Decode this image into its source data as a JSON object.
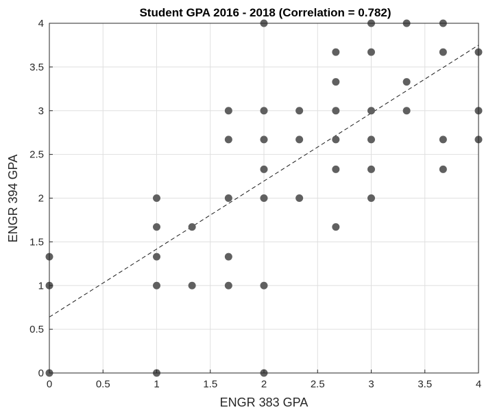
{
  "chart_data": {
    "type": "scatter",
    "title": "Student GPA 2016 - 2018 (Correlation = 0.782)",
    "xlabel": "ENGR 383 GPA",
    "ylabel": "ENGR 394 GPA",
    "xlim": [
      0,
      4
    ],
    "ylim": [
      0,
      4
    ],
    "xticks": [
      0,
      0.5,
      1,
      1.5,
      2,
      2.5,
      3,
      3.5,
      4
    ],
    "xtick_labels": [
      "0",
      "0.5",
      "1",
      "1.5",
      "2",
      "2.5",
      "3",
      "3.5",
      "4"
    ],
    "yticks": [
      0,
      0.5,
      1,
      1.5,
      2,
      2.5,
      3,
      3.5,
      4
    ],
    "ytick_labels": [
      "0",
      "0.5",
      "1",
      "1.5",
      "2",
      "2.5",
      "3",
      "3.5",
      "4"
    ],
    "grid": true,
    "marker_color": "#606060",
    "trendline": {
      "style": "dashed",
      "color": "#1a1a1a",
      "x": [
        0,
        4
      ],
      "y": [
        0.64,
        3.75
      ]
    },
    "points": [
      {
        "x": 0,
        "y": 0
      },
      {
        "x": 0,
        "y": 1
      },
      {
        "x": 0,
        "y": 1.33
      },
      {
        "x": 1,
        "y": 0
      },
      {
        "x": 1,
        "y": 1
      },
      {
        "x": 1,
        "y": 1.33
      },
      {
        "x": 1,
        "y": 1.67
      },
      {
        "x": 1,
        "y": 2
      },
      {
        "x": 1.33,
        "y": 1
      },
      {
        "x": 1.33,
        "y": 1.67
      },
      {
        "x": 1.67,
        "y": 1
      },
      {
        "x": 1.67,
        "y": 1.33
      },
      {
        "x": 1.67,
        "y": 2
      },
      {
        "x": 1.67,
        "y": 2.67
      },
      {
        "x": 1.67,
        "y": 3
      },
      {
        "x": 2,
        "y": 0
      },
      {
        "x": 2,
        "y": 1
      },
      {
        "x": 2,
        "y": 2
      },
      {
        "x": 2,
        "y": 2.33
      },
      {
        "x": 2,
        "y": 2.67
      },
      {
        "x": 2,
        "y": 3
      },
      {
        "x": 2,
        "y": 4
      },
      {
        "x": 2.33,
        "y": 2
      },
      {
        "x": 2.33,
        "y": 2.67
      },
      {
        "x": 2.33,
        "y": 3
      },
      {
        "x": 2.67,
        "y": 1.67
      },
      {
        "x": 2.67,
        "y": 2.33
      },
      {
        "x": 2.67,
        "y": 2.67
      },
      {
        "x": 2.67,
        "y": 3
      },
      {
        "x": 2.67,
        "y": 3.33
      },
      {
        "x": 2.67,
        "y": 3.67
      },
      {
        "x": 3,
        "y": 2
      },
      {
        "x": 3,
        "y": 2.33
      },
      {
        "x": 3,
        "y": 2.67
      },
      {
        "x": 3,
        "y": 3
      },
      {
        "x": 3,
        "y": 3.67
      },
      {
        "x": 3,
        "y": 4
      },
      {
        "x": 3.33,
        "y": 3
      },
      {
        "x": 3.33,
        "y": 3.33
      },
      {
        "x": 3.33,
        "y": 4
      },
      {
        "x": 3.67,
        "y": 2.33
      },
      {
        "x": 3.67,
        "y": 2.67
      },
      {
        "x": 3.67,
        "y": 3.67
      },
      {
        "x": 3.67,
        "y": 4
      },
      {
        "x": 4,
        "y": 2.67
      },
      {
        "x": 4,
        "y": 3
      },
      {
        "x": 4,
        "y": 3.67
      }
    ]
  }
}
